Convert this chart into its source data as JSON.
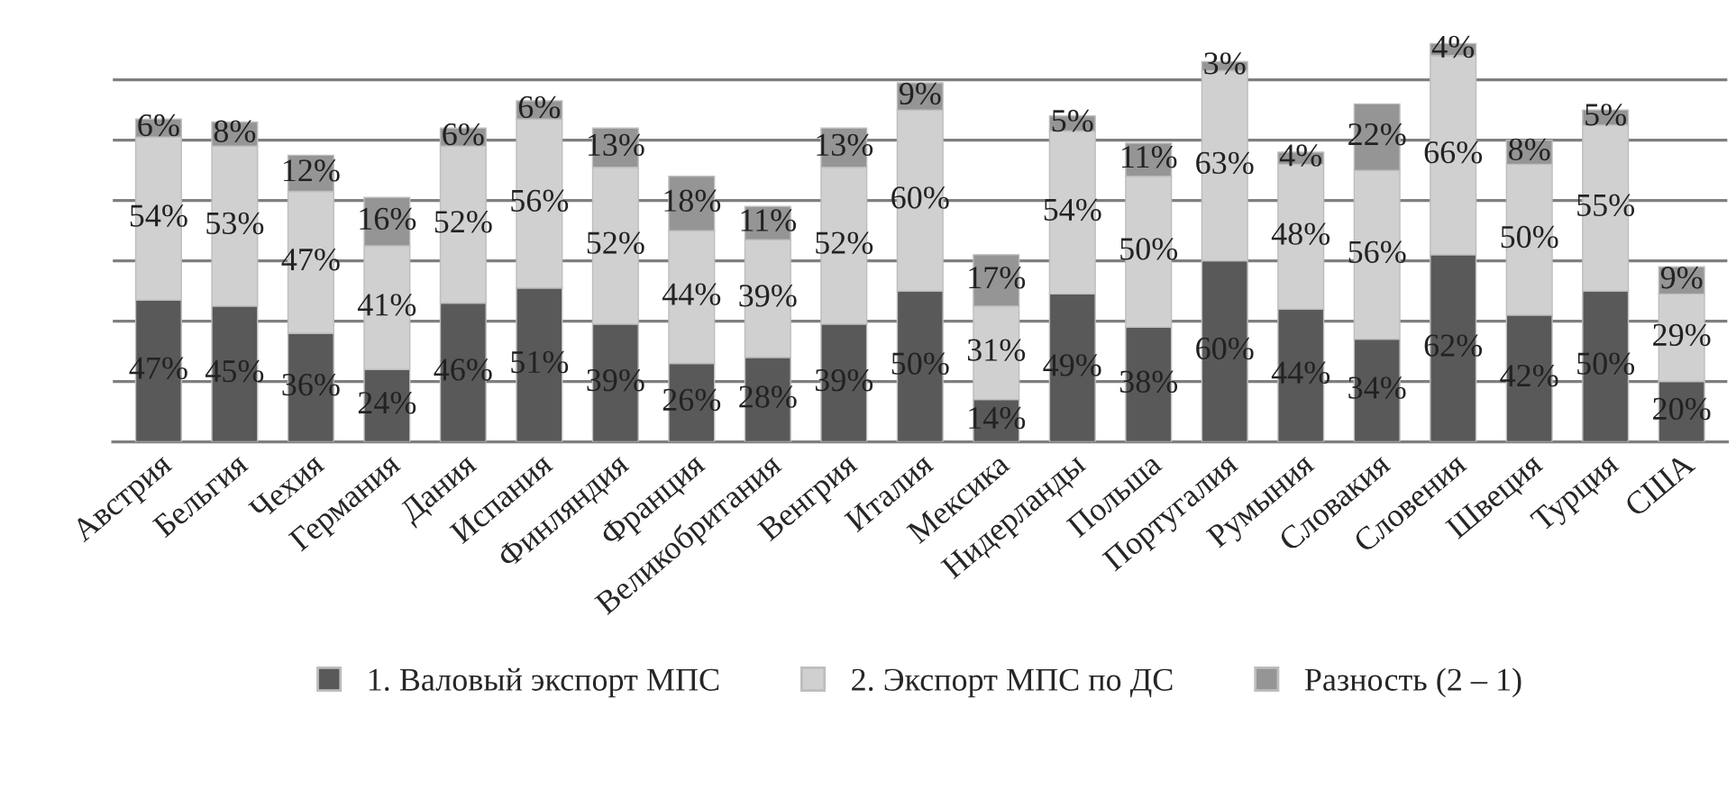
{
  "chart_data": {
    "type": "bar",
    "stacked": true,
    "grid": "y",
    "legend": "bottom",
    "tick_labels": "x",
    "categories": [
      "Австрия",
      "Бельгия",
      "Чехия",
      "Германия",
      "Дания",
      "Испания",
      "Финляндия",
      "Франция",
      "Великобритания",
      "Венгрия",
      "Италия",
      "Мексика",
      "Нидерланды",
      "Польша",
      "Португалия",
      "Румыния",
      "Словакия",
      "Словения",
      "Швеция",
      "Турция",
      "США"
    ],
    "series": [
      {
        "name": "1. Валовый экспорт МПС",
        "color": "#595959",
        "values": [
          47,
          45,
          36,
          24,
          46,
          51,
          39,
          26,
          28,
          39,
          50,
          14,
          49,
          38,
          60,
          44,
          34,
          62,
          42,
          50,
          20
        ],
        "value_labels": [
          "47%",
          "45%",
          "36%",
          "24%",
          "46%",
          "51%",
          "39%",
          "26%",
          "28%",
          "39%",
          "50%",
          "14%",
          "49%",
          "38%",
          "60%",
          "44%",
          "34%",
          "62%",
          "42%",
          "50%",
          "20%"
        ]
      },
      {
        "name": "2. Экспорт МПС по ДС",
        "color": "#d0d0d0",
        "values": [
          54,
          53,
          47,
          41,
          52,
          56,
          52,
          44,
          39,
          52,
          60,
          31,
          54,
          50,
          63,
          48,
          56,
          66,
          50,
          55,
          29
        ],
        "value_labels": [
          "54%",
          "53%",
          "47%",
          "41%",
          "52%",
          "56%",
          "52%",
          "44%",
          "39%",
          "52%",
          "60%",
          "31%",
          "54%",
          "50%",
          "63%",
          "48%",
          "56%",
          "66%",
          "50%",
          "55%",
          "29%"
        ]
      },
      {
        "name": "Разность (2 – 1)",
        "color": "#959595",
        "values": [
          6,
          8,
          12,
          16,
          6,
          6,
          13,
          18,
          11,
          13,
          9,
          17,
          5,
          11,
          3,
          4,
          22,
          4,
          8,
          5,
          9
        ],
        "value_labels": [
          "6%",
          "8%",
          "12%",
          "16%",
          "6%",
          "6%",
          "13%",
          "18%",
          "11%",
          "13%",
          "9%",
          "17%",
          "5%",
          "11%",
          "3%",
          "4%",
          "22%",
          "4%",
          "8%",
          "5%",
          "9%"
        ]
      }
    ]
  }
}
